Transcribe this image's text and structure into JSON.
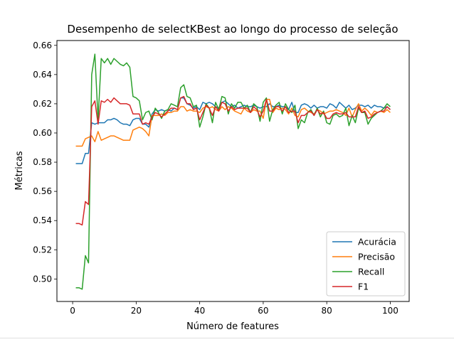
{
  "chart_data": {
    "type": "line",
    "title": "Desempenho de selectKBest ao longo do processo de seleção",
    "xlabel": "Número de features",
    "ylabel": "Métricas",
    "xlim": [
      -4.95,
      105.95
    ],
    "ylim": [
      0.4846,
      0.6633
    ],
    "x_ticks": [
      0,
      20,
      40,
      60,
      80,
      100
    ],
    "y_ticks": [
      0.5,
      0.52,
      0.54,
      0.56,
      0.58,
      0.6,
      0.62,
      0.64,
      0.66
    ],
    "x_tick_labels": [
      "0",
      "20",
      "40",
      "60",
      "80",
      "100"
    ],
    "y_tick_labels": [
      "0.50",
      "0.52",
      "0.54",
      "0.56",
      "0.58",
      "0.60",
      "0.62",
      "0.64",
      "0.66"
    ],
    "grid": false,
    "legend_position": "lower-right",
    "x": [
      1,
      2,
      3,
      4,
      5,
      6,
      7,
      8,
      9,
      10,
      11,
      12,
      13,
      14,
      15,
      16,
      17,
      18,
      19,
      20,
      21,
      22,
      23,
      24,
      25,
      26,
      27,
      28,
      29,
      30,
      31,
      32,
      33,
      34,
      35,
      36,
      37,
      38,
      39,
      40,
      41,
      42,
      43,
      44,
      45,
      46,
      47,
      48,
      49,
      50,
      51,
      52,
      53,
      54,
      55,
      56,
      57,
      58,
      59,
      60,
      61,
      62,
      63,
      64,
      65,
      66,
      67,
      68,
      69,
      70,
      71,
      72,
      73,
      74,
      75,
      76,
      77,
      78,
      79,
      80,
      81,
      82,
      83,
      84,
      85,
      86,
      87,
      88,
      89,
      90,
      91,
      92,
      93,
      94,
      95,
      96,
      97,
      98,
      99,
      100
    ],
    "series": [
      {
        "name": "Acurácia",
        "color": "#1f77b4",
        "values": [
          0.579,
          0.579,
          0.579,
          0.586,
          0.586,
          0.607,
          0.606,
          0.607,
          0.607,
          0.607,
          0.609,
          0.609,
          0.61,
          0.609,
          0.607,
          0.606,
          0.606,
          0.605,
          0.609,
          0.61,
          0.61,
          0.606,
          0.606,
          0.604,
          0.613,
          0.616,
          0.615,
          0.616,
          0.615,
          0.616,
          0.615,
          0.617,
          0.616,
          0.624,
          0.624,
          0.62,
          0.619,
          0.617,
          0.618,
          0.616,
          0.621,
          0.62,
          0.621,
          0.62,
          0.618,
          0.617,
          0.621,
          0.622,
          0.62,
          0.618,
          0.619,
          0.617,
          0.618,
          0.619,
          0.618,
          0.618,
          0.619,
          0.618,
          0.617,
          0.618,
          0.618,
          0.62,
          0.618,
          0.618,
          0.619,
          0.618,
          0.618,
          0.616,
          0.621,
          0.614,
          0.614,
          0.619,
          0.62,
          0.619,
          0.617,
          0.619,
          0.617,
          0.618,
          0.618,
          0.617,
          0.62,
          0.619,
          0.617,
          0.621,
          0.619,
          0.617,
          0.619,
          0.616,
          0.617,
          0.619,
          0.619,
          0.618,
          0.619,
          0.617,
          0.619,
          0.618,
          0.618,
          0.617,
          0.618,
          0.616
        ]
      },
      {
        "name": "Precisão",
        "color": "#ff7f0e",
        "values": [
          0.591,
          0.591,
          0.591,
          0.596,
          0.597,
          0.598,
          0.594,
          0.601,
          0.595,
          0.596,
          0.597,
          0.598,
          0.598,
          0.597,
          0.596,
          0.595,
          0.595,
          0.595,
          0.602,
          0.603,
          0.604,
          0.603,
          0.601,
          0.598,
          0.612,
          0.612,
          0.612,
          0.613,
          0.612,
          0.614,
          0.614,
          0.615,
          0.615,
          0.618,
          0.618,
          0.615,
          0.616,
          0.615,
          0.615,
          0.614,
          0.617,
          0.618,
          0.617,
          0.618,
          0.616,
          0.615,
          0.618,
          0.616,
          0.618,
          0.617,
          0.615,
          0.614,
          0.613,
          0.617,
          0.615,
          0.614,
          0.616,
          0.615,
          0.615,
          0.61,
          0.623,
          0.623,
          0.614,
          0.617,
          0.616,
          0.617,
          0.616,
          0.613,
          0.617,
          0.612,
          0.611,
          0.616,
          0.617,
          0.615,
          0.614,
          0.613,
          0.616,
          0.615,
          0.613,
          0.614,
          0.615,
          0.615,
          0.616,
          0.615,
          0.614,
          0.612,
          0.617,
          0.611,
          0.616,
          0.62,
          0.615,
          0.617,
          0.615,
          0.612,
          0.615,
          0.614,
          0.615,
          0.614,
          0.616,
          0.614
        ]
      },
      {
        "name": "Recall",
        "color": "#2ca02c",
        "values": [
          0.494,
          0.494,
          0.493,
          0.516,
          0.511,
          0.64,
          0.654,
          0.609,
          0.651,
          0.648,
          0.651,
          0.647,
          0.651,
          0.649,
          0.647,
          0.646,
          0.648,
          0.645,
          0.625,
          0.624,
          0.622,
          0.609,
          0.614,
          0.615,
          0.609,
          0.617,
          0.614,
          0.61,
          0.615,
          0.616,
          0.62,
          0.619,
          0.618,
          0.631,
          0.633,
          0.625,
          0.624,
          0.618,
          0.619,
          0.604,
          0.611,
          0.62,
          0.617,
          0.607,
          0.621,
          0.616,
          0.625,
          0.624,
          0.613,
          0.62,
          0.617,
          0.621,
          0.621,
          0.617,
          0.619,
          0.614,
          0.62,
          0.618,
          0.608,
          0.621,
          0.624,
          0.608,
          0.616,
          0.619,
          0.621,
          0.613,
          0.62,
          0.616,
          0.614,
          0.619,
          0.603,
          0.609,
          0.607,
          0.614,
          0.616,
          0.612,
          0.617,
          0.611,
          0.615,
          0.607,
          0.606,
          0.612,
          0.613,
          0.611,
          0.612,
          0.617,
          0.605,
          0.612,
          0.607,
          0.617,
          0.614,
          0.614,
          0.606,
          0.61,
          0.612,
          0.614,
          0.615,
          0.617,
          0.62,
          0.618
        ]
      },
      {
        "name": "F1",
        "color": "#d62728",
        "values": [
          0.538,
          0.538,
          0.537,
          0.553,
          0.551,
          0.618,
          0.622,
          0.606,
          0.622,
          0.621,
          0.623,
          0.621,
          0.624,
          0.622,
          0.62,
          0.62,
          0.62,
          0.619,
          0.613,
          0.613,
          0.613,
          0.606,
          0.607,
          0.606,
          0.611,
          0.614,
          0.613,
          0.611,
          0.613,
          0.615,
          0.617,
          0.617,
          0.616,
          0.624,
          0.625,
          0.62,
          0.62,
          0.616,
          0.617,
          0.609,
          0.614,
          0.619,
          0.617,
          0.612,
          0.618,
          0.615,
          0.621,
          0.62,
          0.615,
          0.618,
          0.616,
          0.617,
          0.617,
          0.617,
          0.617,
          0.614,
          0.618,
          0.616,
          0.611,
          0.615,
          0.623,
          0.615,
          0.615,
          0.618,
          0.618,
          0.615,
          0.618,
          0.614,
          0.615,
          0.615,
          0.607,
          0.612,
          0.612,
          0.614,
          0.615,
          0.612,
          0.616,
          0.613,
          0.614,
          0.61,
          0.61,
          0.613,
          0.614,
          0.613,
          0.613,
          0.614,
          0.611,
          0.611,
          0.611,
          0.618,
          0.614,
          0.615,
          0.61,
          0.611,
          0.613,
          0.614,
          0.615,
          0.615,
          0.618,
          0.616
        ]
      }
    ]
  }
}
